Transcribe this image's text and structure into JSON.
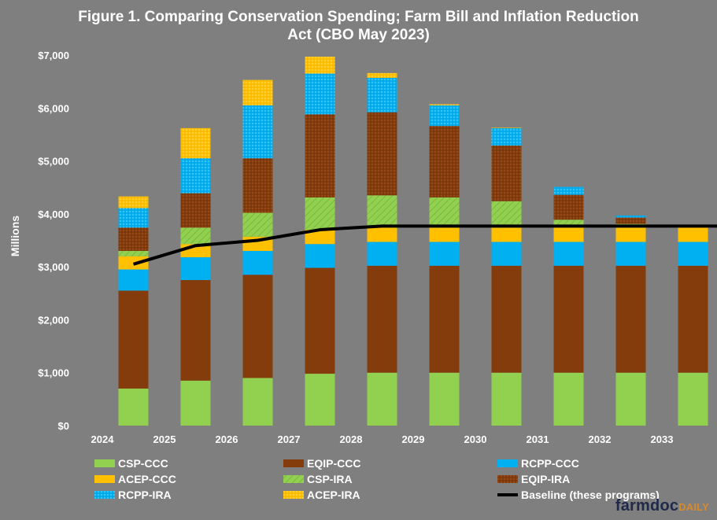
{
  "title_line1": "Figure 1. Comparing Conservation Spending; Farm Bill and Inflation Reduction",
  "title_line2": "Act (CBO May 2023)",
  "brand": {
    "part1": "farmdoc",
    "part2": "DAILY"
  },
  "colors": {
    "background": "#7f7f7f",
    "CSP": "#92d050",
    "EQIP": "#843c0c",
    "RCPP": "#00b0f0",
    "ACEP": "#ffc000",
    "baseline": "#000000"
  },
  "chart_data": {
    "type": "bar",
    "stacked": true,
    "ylabel": "Millions",
    "ylim": [
      0,
      7000
    ],
    "yticks": [
      "$0",
      "$1,000",
      "$2,000",
      "$3,000",
      "$4,000",
      "$5,000",
      "$6,000",
      "$7,000"
    ],
    "categories": [
      "2024",
      "2025",
      "2026",
      "2027",
      "2028",
      "2029",
      "2030",
      "2031",
      "2032",
      "2033"
    ],
    "series": [
      {
        "name": "CSP-CCC",
        "color": "#92d050",
        "pattern": "solid",
        "values": [
          700,
          850,
          900,
          980,
          1000,
          1000,
          1000,
          1000,
          1000,
          1000
        ]
      },
      {
        "name": "EQIP-CCC",
        "color": "#843c0c",
        "pattern": "solid",
        "values": [
          1850,
          1900,
          1950,
          2000,
          2020,
          2020,
          2020,
          2020,
          2020,
          2020
        ]
      },
      {
        "name": "RCPP-CCC",
        "color": "#00b0f0",
        "pattern": "solid",
        "values": [
          400,
          430,
          450,
          450,
          450,
          450,
          450,
          450,
          450,
          450
        ]
      },
      {
        "name": "ACEP-CCC",
        "color": "#ffc000",
        "pattern": "solid",
        "values": [
          250,
          250,
          270,
          270,
          270,
          270,
          270,
          270,
          270,
          270
        ]
      },
      {
        "name": "CSP-IRA",
        "color": "#92d050",
        "pattern": "hatched",
        "values": [
          100,
          310,
          450,
          610,
          610,
          570,
          500,
          150,
          70,
          0
        ]
      },
      {
        "name": "EQIP-IRA",
        "color": "#843c0c",
        "pattern": "dotted",
        "values": [
          440,
          650,
          1030,
          1570,
          1570,
          1350,
          1050,
          470,
          120,
          0
        ]
      },
      {
        "name": "RCPP-IRA",
        "color": "#00b0f0",
        "pattern": "dotted",
        "values": [
          370,
          660,
          1000,
          770,
          650,
          390,
          330,
          150,
          40,
          0
        ]
      },
      {
        "name": "ACEP-IRA",
        "color": "#ffc000",
        "pattern": "dotted",
        "values": [
          220,
          570,
          480,
          320,
          90,
          20,
          10,
          0,
          0,
          0
        ]
      }
    ],
    "baseline": {
      "name": "Baseline (these programs)",
      "values": [
        3050,
        3400,
        3500,
        3700,
        3770,
        3770,
        3770,
        3770,
        3770,
        3770
      ]
    }
  }
}
